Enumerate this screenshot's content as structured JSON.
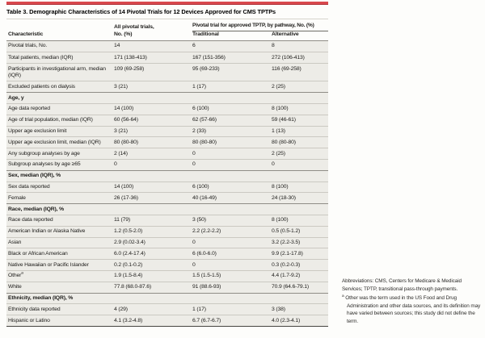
{
  "colors": {
    "accent_bar": "#d9484d",
    "row_background": "#edece7",
    "rule_light": "#cbc9c2",
    "rule_dark": "#8f8d86"
  },
  "table": {
    "title": "Table 3. Demographic Characteristics of 14 Pivotal Trials for 12 Devices Approved for CMS TPTPs",
    "col_headers": {
      "characteristic": "Characteristic",
      "all_line1": "All pivotal trials,",
      "all_line2": "No. (%)",
      "spanner": "Pivotal trial for approved TPTP, by pathway, No. (%)",
      "traditional": "Traditional",
      "alternative": "Alternative"
    },
    "rows": [
      {
        "type": "data",
        "label": "Pivotal trials, No.",
        "values": [
          "14",
          "6",
          "8"
        ]
      },
      {
        "type": "data",
        "label": "Total patients, median (IQR)",
        "values": [
          "171 (138-413)",
          "167 (151-356)",
          "272 (106-413)"
        ]
      },
      {
        "type": "data",
        "label": "Participants in investigational arm, median (IQR)",
        "values": [
          "109 (69-258)",
          "95 (69-233)",
          "116 (69-258)"
        ]
      },
      {
        "type": "data",
        "label": "Excluded patients on dialysis",
        "values": [
          "3 (21)",
          "1 (17)",
          "2 (25)"
        ]
      },
      {
        "type": "section",
        "label": "Age, y",
        "values": [
          "",
          "",
          ""
        ]
      },
      {
        "type": "data",
        "label": "Age data reported",
        "values": [
          "14 (100)",
          "6 (100)",
          "8 (100)"
        ]
      },
      {
        "type": "data",
        "label": "Age of trial population, median (IQR)",
        "values": [
          "60 (56-64)",
          "62 (57-66)",
          "59 (46-61)"
        ]
      },
      {
        "type": "data",
        "label": "Upper age exclusion limit",
        "values": [
          "3 (21)",
          "2 (33)",
          "1 (13)"
        ]
      },
      {
        "type": "data",
        "label": "Upper age exclusion limit, median (IQR)",
        "values": [
          "80 (80-80)",
          "80 (80-80)",
          "80 (80-80)"
        ]
      },
      {
        "type": "data",
        "label": "Any subgroup analyses by age",
        "values": [
          "2 (14)",
          "0",
          "2 (25)"
        ]
      },
      {
        "type": "data",
        "label": "Subgroup analyses by age ≥65",
        "values": [
          "0",
          "0",
          "0"
        ]
      },
      {
        "type": "section",
        "label": "Sex, median (IQR), %",
        "values": [
          "",
          "",
          ""
        ]
      },
      {
        "type": "data",
        "label": "Sex data reported",
        "values": [
          "14 (100)",
          "6 (100)",
          "8 (100)"
        ]
      },
      {
        "type": "data",
        "label": "Female",
        "values": [
          "26 (17-36)",
          "40 (16-49)",
          "24 (18-30)"
        ]
      },
      {
        "type": "section",
        "label": "Race, median (IQR), %",
        "values": [
          "",
          "",
          ""
        ]
      },
      {
        "type": "data",
        "label": "Race data reported",
        "values": [
          "11 (79)",
          "3 (50)",
          "8 (100)"
        ]
      },
      {
        "type": "data",
        "label": "American Indian or Alaska Native",
        "values": [
          "1.2 (0.5-2.0)",
          "2.2 (2.2-2.2)",
          "0.5 (0.5-1.2)"
        ]
      },
      {
        "type": "data",
        "label": "Asian",
        "values": [
          "2.9 (0.02-3.4)",
          "0",
          "3.2 (2.2-3.5)"
        ]
      },
      {
        "type": "data",
        "label": "Black or African American",
        "values": [
          "6.0 (2.4-17.4)",
          "6 (6.0-6.0)",
          "9.9 (2.1-17.8)"
        ]
      },
      {
        "type": "data",
        "label": "Native Hawaiian or Pacific Islander",
        "values": [
          "0.2 (0.1-0.2)",
          "0",
          "0.3 (0.2-0.3)"
        ]
      },
      {
        "type": "data",
        "label": "Other",
        "sup": "a",
        "values": [
          "1.9 (1.5-8.4)",
          "1.5 (1.5-1.5)",
          "4.4 (1.7-9.2)"
        ]
      },
      {
        "type": "data",
        "label": "White",
        "values": [
          "77.8 (68.0-87.6)",
          "91 (88.6-93)",
          "70.9 (64.6-79.1)"
        ]
      },
      {
        "type": "section",
        "label": "Ethnicity, median (IQR), %",
        "values": [
          "",
          "",
          ""
        ]
      },
      {
        "type": "data",
        "label": "Ethnicity data reported",
        "values": [
          "4 (29)",
          "1 (17)",
          "3 (38)"
        ]
      },
      {
        "type": "data",
        "label": "Hispanic or Latino",
        "values": [
          "4.1 (3.2-4.8)",
          "6.7 (6.7-6.7)",
          "4.0 (2.3-4.1)"
        ]
      }
    ]
  },
  "footnotes": {
    "abbreviations": "Abbreviations: CMS, Centers for Medicare & Medicaid Services; TPTP, transitional pass-through payments.",
    "a_marker": "a",
    "a_text": "Other was the term used in the US Food and Drug Administration and other data sources, and its definition may have varied between sources; this study did not define the term."
  }
}
